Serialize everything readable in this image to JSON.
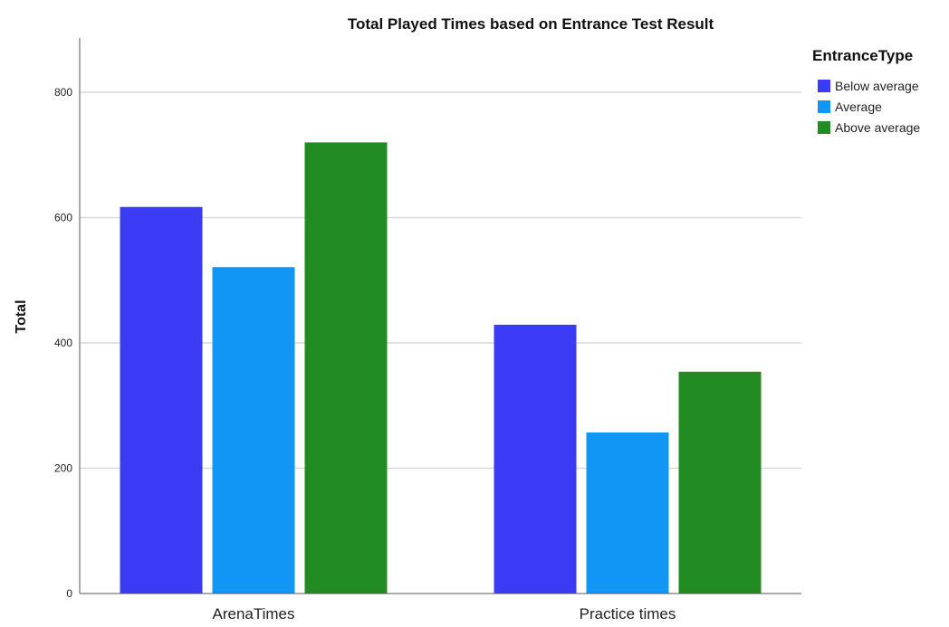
{
  "chart_data": {
    "type": "bar",
    "title": "Total Played Times based on Entrance Test Result",
    "xlabel": "",
    "ylabel": "Total",
    "ylim": [
      0,
      880
    ],
    "yticks": [
      "0",
      "200",
      "400",
      "600",
      "800"
    ],
    "categories": [
      "ArenaTimes",
      "Practice times"
    ],
    "legend_title": "EntranceType",
    "legend_position": "top-right",
    "grid": "horizontal",
    "series": [
      {
        "name": "Below average",
        "color": "#3b3bf5",
        "values": [
          617,
          429
        ]
      },
      {
        "name": "Average",
        "color": "#1196f5",
        "values": [
          521,
          257
        ]
      },
      {
        "name": "Above average",
        "color": "#228b22",
        "values": [
          720,
          354
        ]
      }
    ]
  }
}
